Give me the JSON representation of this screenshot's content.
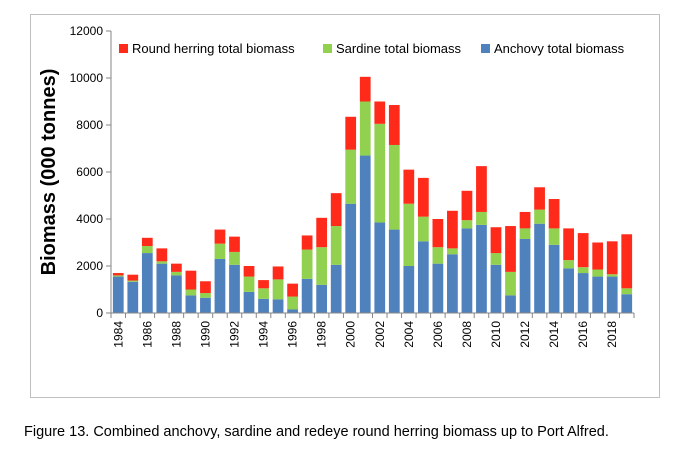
{
  "caption": "Figure 13.  Combined anchovy, sardine and redeye round herring biomass up to Port Alfred.",
  "chart_data": {
    "type": "bar",
    "stacked": true,
    "ylabel": "Biomass (000 tonnes)",
    "xlabel": "",
    "ylim": [
      0,
      12000
    ],
    "yticks": [
      0,
      2000,
      4000,
      6000,
      8000,
      10000,
      12000
    ],
    "ytick_labels": [
      "0",
      "2000",
      "4000",
      "6000",
      "8000",
      "10000",
      "12000"
    ],
    "grid": false,
    "legend_position": "top",
    "x": [
      1984,
      1985,
      1986,
      1987,
      1988,
      1989,
      1990,
      1991,
      1992,
      1993,
      1994,
      1995,
      1996,
      1997,
      1998,
      1999,
      2000,
      2001,
      2002,
      2003,
      2004,
      2005,
      2006,
      2007,
      2008,
      2009,
      2010,
      2011,
      2012,
      2013,
      2014,
      2015,
      2016,
      2017,
      2018,
      2019
    ],
    "xtick_labels": [
      "1984",
      "1986",
      "1988",
      "1990",
      "1992",
      "1994",
      "1996",
      "1998",
      "2000",
      "2002",
      "2004",
      "2006",
      "2008",
      "2010",
      "2012",
      "2014",
      "2016",
      "2018"
    ],
    "series": [
      {
        "name": "Anchovy total biomass",
        "color": "#4f81bd",
        "values": [
          1550,
          1330,
          2550,
          2100,
          1600,
          750,
          650,
          2300,
          2050,
          900,
          600,
          580,
          150,
          1450,
          1200,
          2050,
          4650,
          6700,
          3850,
          3550,
          2000,
          3050,
          2100,
          2500,
          3600,
          3750,
          2050,
          750,
          3150,
          3800,
          2900,
          1900,
          1700,
          1550,
          1550,
          800
        ]
      },
      {
        "name": "Sardine total biomass",
        "color": "#92d050",
        "values": [
          50,
          50,
          300,
          100,
          150,
          250,
          200,
          650,
          550,
          650,
          450,
          850,
          550,
          1250,
          1600,
          1650,
          2300,
          2300,
          4200,
          3600,
          2650,
          1050,
          700,
          250,
          350,
          550,
          500,
          1000,
          450,
          600,
          700,
          350,
          250,
          300,
          100,
          250
        ]
      },
      {
        "name": "Round herring total biomass",
        "color": "#ff2a1a",
        "values": [
          100,
          250,
          350,
          550,
          350,
          800,
          500,
          600,
          650,
          450,
          350,
          550,
          550,
          600,
          1250,
          1400,
          1400,
          1050,
          950,
          1700,
          1450,
          1650,
          1200,
          1600,
          1250,
          1950,
          1100,
          1950,
          700,
          950,
          1250,
          1350,
          1450,
          1150,
          1400,
          2300
        ]
      }
    ]
  }
}
